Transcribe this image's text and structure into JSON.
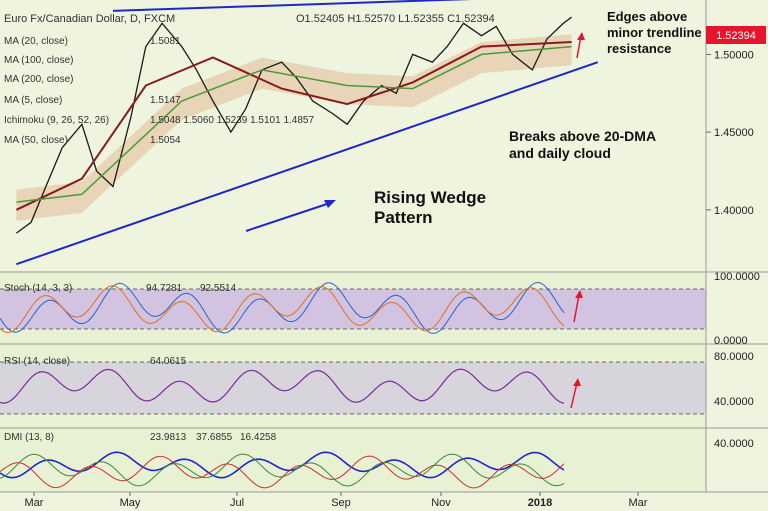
{
  "header": {
    "symbol": "Euro Fx/Canadian Dollar, D, FXCM",
    "ohlc": "O1.52405  H1.52570  L1.52355  C1.52394"
  },
  "price_badge": "1.52394",
  "overlays": [
    {
      "label": "MA (20, close)",
      "value": "1.5081"
    },
    {
      "label": "MA (100, close)",
      "value": ""
    },
    {
      "label": "MA (200, close)",
      "value": ""
    },
    {
      "label": "MA (5, close)",
      "value": "1.5147"
    },
    {
      "label": "Ichimoku (9, 26, 52, 26)",
      "value": "1.5048  1.5060  1.5239  1.5101  1.4857"
    },
    {
      "label": "MA (50, close)",
      "value": "1.5054"
    }
  ],
  "annotations": {
    "edges": "Edges above minor trendline resistance",
    "breaks": "Breaks above 20-DMA and daily cloud",
    "wedge": "Rising Wedge Pattern"
  },
  "indicators": {
    "stoch": {
      "label": "Stoch (14, 3, 3)",
      "k": "94.7281",
      "d": "92.5514"
    },
    "rsi": {
      "label": "RSI (14, close)",
      "value": "64.0615"
    },
    "dmi": {
      "label": "DMI (13, 8)",
      "values": [
        "23.9813",
        "37.6855",
        "16.4258"
      ]
    }
  },
  "chart_data": {
    "type": "line",
    "title": "Euro Fx/Canadian Dollar, D, FXCM",
    "x_ticks": [
      "Mar",
      "May",
      "Jul",
      "Sep",
      "Nov",
      "2018",
      "Mar"
    ],
    "price_axis": {
      "ticks": [
        "1.50000",
        "1.45000",
        "1.40000"
      ],
      "ylim": [
        1.36,
        1.535
      ]
    },
    "stoch_axis": {
      "ticks": [
        "100.0000",
        "0.0000"
      ],
      "ylim": [
        0,
        100
      ],
      "band": [
        20,
        80
      ]
    },
    "rsi_axis": {
      "ticks": [
        "80.0000",
        "40.0000"
      ],
      "ylim": [
        20,
        90
      ],
      "band": [
        30,
        70
      ]
    },
    "dmi_axis": {
      "ticks": [
        "40.0000"
      ],
      "ylim": [
        0,
        50
      ]
    },
    "series": [
      {
        "name": "Euro Fx/Canadian Dollar",
        "x": [
          "2017-02-20",
          "2017-03-01",
          "2017-03-10",
          "2017-03-20",
          "2017-04-01",
          "2017-04-10",
          "2017-04-20",
          "2017-05-01",
          "2017-05-10",
          "2017-05-20",
          "2017-06-01",
          "2017-06-10",
          "2017-06-20",
          "2017-07-01",
          "2017-07-10",
          "2017-07-20",
          "2017-08-01",
          "2017-08-10",
          "2017-08-20",
          "2017-09-01",
          "2017-09-10",
          "2017-09-20",
          "2017-10-01",
          "2017-10-10",
          "2017-10-20",
          "2017-11-01",
          "2017-11-10",
          "2017-11-20",
          "2017-12-01",
          "2017-12-10",
          "2017-12-20",
          "2018-01-01",
          "2018-01-10",
          "2018-01-20",
          "2018-01-25"
        ],
        "y": [
          1.385,
          1.392,
          1.415,
          1.44,
          1.455,
          1.425,
          1.415,
          1.46,
          1.505,
          1.52,
          1.505,
          1.49,
          1.47,
          1.45,
          1.465,
          1.49,
          1.495,
          1.485,
          1.47,
          1.462,
          1.455,
          1.47,
          1.48,
          1.475,
          1.5,
          1.495,
          1.505,
          1.52,
          1.512,
          1.518,
          1.5,
          1.49,
          1.51,
          1.52,
          1.524
        ]
      },
      {
        "name": "MA (20, close)",
        "x": [
          "2017-02-20",
          "2017-04-01",
          "2017-05-10",
          "2017-06-20",
          "2017-08-01",
          "2017-09-10",
          "2017-10-20",
          "2017-12-01",
          "2018-01-25"
        ],
        "y": [
          1.4,
          1.42,
          1.48,
          1.498,
          1.478,
          1.468,
          1.482,
          1.505,
          1.508
        ]
      },
      {
        "name": "MA (100, close)",
        "x": [
          "2017-02-20",
          "2017-04-01",
          "2017-06-01",
          "2017-07-20",
          "2017-09-10",
          "2017-10-20",
          "2017-12-01",
          "2018-01-25"
        ],
        "y": [
          1.405,
          1.41,
          1.47,
          1.49,
          1.48,
          1.478,
          1.5,
          1.505
        ]
      }
    ],
    "trendlines": [
      {
        "name": "upper",
        "from": [
          "2017-04-20",
          1.528
        ],
        "to": [
          "2018-02-01",
          1.538
        ]
      },
      {
        "name": "lower",
        "from": [
          "2017-02-20",
          1.365
        ],
        "to": [
          "2018-02-10",
          1.495
        ]
      }
    ]
  }
}
